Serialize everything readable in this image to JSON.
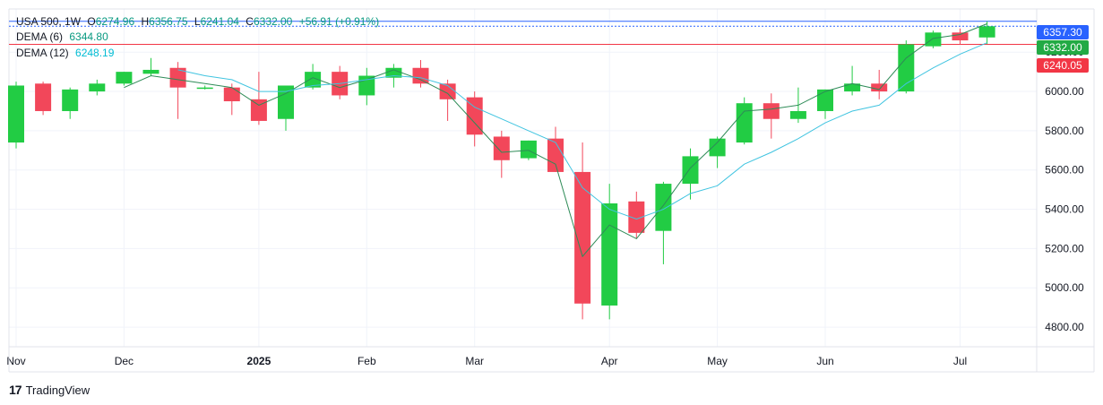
{
  "legend": {
    "symbol": "USA 500, 1W",
    "open_label": "O",
    "open": "6274.96",
    "high_label": "H",
    "high": "6356.75",
    "low_label": "L",
    "low": "6241.04",
    "close_label": "C",
    "close": "6332.00",
    "change": "+56.91 (+0.91%)",
    "dema6_label": "DEMA (6)",
    "dema6_value": "6344.80",
    "dema12_label": "DEMA (12)",
    "dema12_value": "6248.19"
  },
  "price_labels": [
    {
      "value": "6357.30",
      "color": "#2962ff"
    },
    {
      "value": "6332.00",
      "color": "#22cc44"
    },
    {
      "value": "6240.05",
      "color": "#f23645"
    }
  ],
  "branding": {
    "logo": "17",
    "name": "TradingView"
  },
  "colors": {
    "up": "#22cc44",
    "down": "#f2475a",
    "dema6": "#2e8b57",
    "dema12": "#40c4e0"
  },
  "chart_data": {
    "type": "candlestick",
    "symbol": "USA 500",
    "interval": "1W",
    "ylim": [
      4700,
      6420
    ],
    "y_ticks": [
      "4800.00",
      "5000.00",
      "5200.00",
      "5400.00",
      "5600.00",
      "5800.00",
      "6000.00",
      "6200.00"
    ],
    "x_labels": [
      "Nov",
      "Dec",
      "2025",
      "Feb",
      "Mar",
      "Apr",
      "May",
      "Jun",
      "Jul"
    ],
    "x_label_index": [
      0,
      4,
      9,
      13,
      17,
      22,
      26,
      30,
      35
    ],
    "candles": [
      {
        "o": 5740,
        "h": 6050,
        "l": 5710,
        "c": 6030
      },
      {
        "o": 6040,
        "h": 6050,
        "l": 5880,
        "c": 5900
      },
      {
        "o": 5900,
        "h": 6020,
        "l": 5860,
        "c": 6010
      },
      {
        "o": 6000,
        "h": 6060,
        "l": 5980,
        "c": 6040
      },
      {
        "o": 6040,
        "h": 6100,
        "l": 6030,
        "c": 6100
      },
      {
        "o": 6090,
        "h": 6170,
        "l": 6080,
        "c": 6110
      },
      {
        "o": 6120,
        "h": 6150,
        "l": 5860,
        "c": 6020
      },
      {
        "o": 6020,
        "h": 6030,
        "l": 6010,
        "c": 6020
      },
      {
        "o": 6020,
        "h": 6040,
        "l": 5880,
        "c": 5950
      },
      {
        "o": 5960,
        "h": 6100,
        "l": 5830,
        "c": 5850
      },
      {
        "o": 5860,
        "h": 6030,
        "l": 5800,
        "c": 6030
      },
      {
        "o": 6020,
        "h": 6140,
        "l": 6010,
        "c": 6100
      },
      {
        "o": 6100,
        "h": 6130,
        "l": 5960,
        "c": 5980
      },
      {
        "o": 5980,
        "h": 6120,
        "l": 5930,
        "c": 6080
      },
      {
        "o": 6070,
        "h": 6140,
        "l": 6020,
        "c": 6120
      },
      {
        "o": 6120,
        "h": 6160,
        "l": 6020,
        "c": 6040
      },
      {
        "o": 6040,
        "h": 6060,
        "l": 5850,
        "c": 5960
      },
      {
        "o": 5970,
        "h": 6000,
        "l": 5720,
        "c": 5780
      },
      {
        "o": 5770,
        "h": 5800,
        "l": 5560,
        "c": 5650
      },
      {
        "o": 5660,
        "h": 5750,
        "l": 5650,
        "c": 5750
      },
      {
        "o": 5760,
        "h": 5820,
        "l": 5590,
        "c": 5590
      },
      {
        "o": 5590,
        "h": 5740,
        "l": 4840,
        "c": 4920
      },
      {
        "o": 4910,
        "h": 5530,
        "l": 4840,
        "c": 5430
      },
      {
        "o": 5440,
        "h": 5490,
        "l": 5250,
        "c": 5280
      },
      {
        "o": 5290,
        "h": 5540,
        "l": 5120,
        "c": 5530
      },
      {
        "o": 5530,
        "h": 5710,
        "l": 5450,
        "c": 5670
      },
      {
        "o": 5670,
        "h": 5770,
        "l": 5610,
        "c": 5760
      },
      {
        "o": 5740,
        "h": 5970,
        "l": 5730,
        "c": 5940
      },
      {
        "o": 5940,
        "h": 5990,
        "l": 5760,
        "c": 5860
      },
      {
        "o": 5860,
        "h": 6020,
        "l": 5840,
        "c": 5900
      },
      {
        "o": 5900,
        "h": 6010,
        "l": 5860,
        "c": 6010
      },
      {
        "o": 6000,
        "h": 6130,
        "l": 5980,
        "c": 6040
      },
      {
        "o": 6040,
        "h": 6110,
        "l": 5960,
        "c": 6000
      },
      {
        "o": 6000,
        "h": 6260,
        "l": 5990,
        "c": 6240
      },
      {
        "o": 6230,
        "h": 6310,
        "l": 6220,
        "c": 6300
      },
      {
        "o": 6300,
        "h": 6320,
        "l": 6240,
        "c": 6260
      },
      {
        "o": 6275,
        "h": 6357,
        "l": 6241,
        "c": 6332
      }
    ],
    "series": [
      {
        "name": "DEMA (6)",
        "values": [
          null,
          null,
          null,
          null,
          6020,
          6080,
          6060,
          6040,
          6020,
          5930,
          5990,
          6070,
          6020,
          6060,
          6110,
          6060,
          5990,
          5840,
          5690,
          5700,
          5630,
          5160,
          5320,
          5250,
          5420,
          5610,
          5740,
          5900,
          5910,
          5930,
          6000,
          6040,
          6010,
          6170,
          6270,
          6290,
          6344.8
        ]
      },
      {
        "name": "DEMA (12)",
        "values": [
          null,
          null,
          null,
          null,
          null,
          null,
          6110,
          6080,
          6060,
          6000,
          6000,
          6030,
          6040,
          6060,
          6080,
          6070,
          6030,
          5920,
          5860,
          5800,
          5740,
          5510,
          5400,
          5350,
          5400,
          5480,
          5520,
          5630,
          5690,
          5760,
          5840,
          5900,
          5930,
          6040,
          6120,
          6190,
          6248.19
        ]
      }
    ],
    "grid": true,
    "legend_position": "top-left"
  }
}
